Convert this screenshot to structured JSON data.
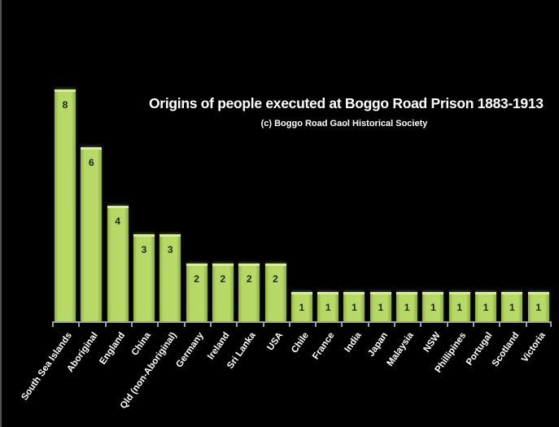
{
  "chart_data": {
    "type": "bar",
    "title": "Origins of people executed at Boggo Road Prison 1883-1913",
    "subtitle": "(c) Boggo Road Gaol Historical Society",
    "xlabel": "",
    "ylabel": "",
    "ylim": [
      0,
      8
    ],
    "grid": false,
    "legend": null,
    "data_labels": true,
    "bar_color": "#b5d865",
    "background": "#000000",
    "categories": [
      "South Sea Islands",
      "Aboriginal",
      "England",
      "China",
      "Qld (non-Aboriginal)",
      "Germany",
      "Ireland",
      "Sri Lanka",
      "USA",
      "Chile",
      "France",
      "India",
      "Japan",
      "Malaysia",
      "NSW",
      "Phillipines",
      "Portugal",
      "Scotland",
      "Victoria"
    ],
    "values": [
      8,
      6,
      4,
      3,
      3,
      2,
      2,
      2,
      2,
      1,
      1,
      1,
      1,
      1,
      1,
      1,
      1,
      1,
      1
    ]
  }
}
